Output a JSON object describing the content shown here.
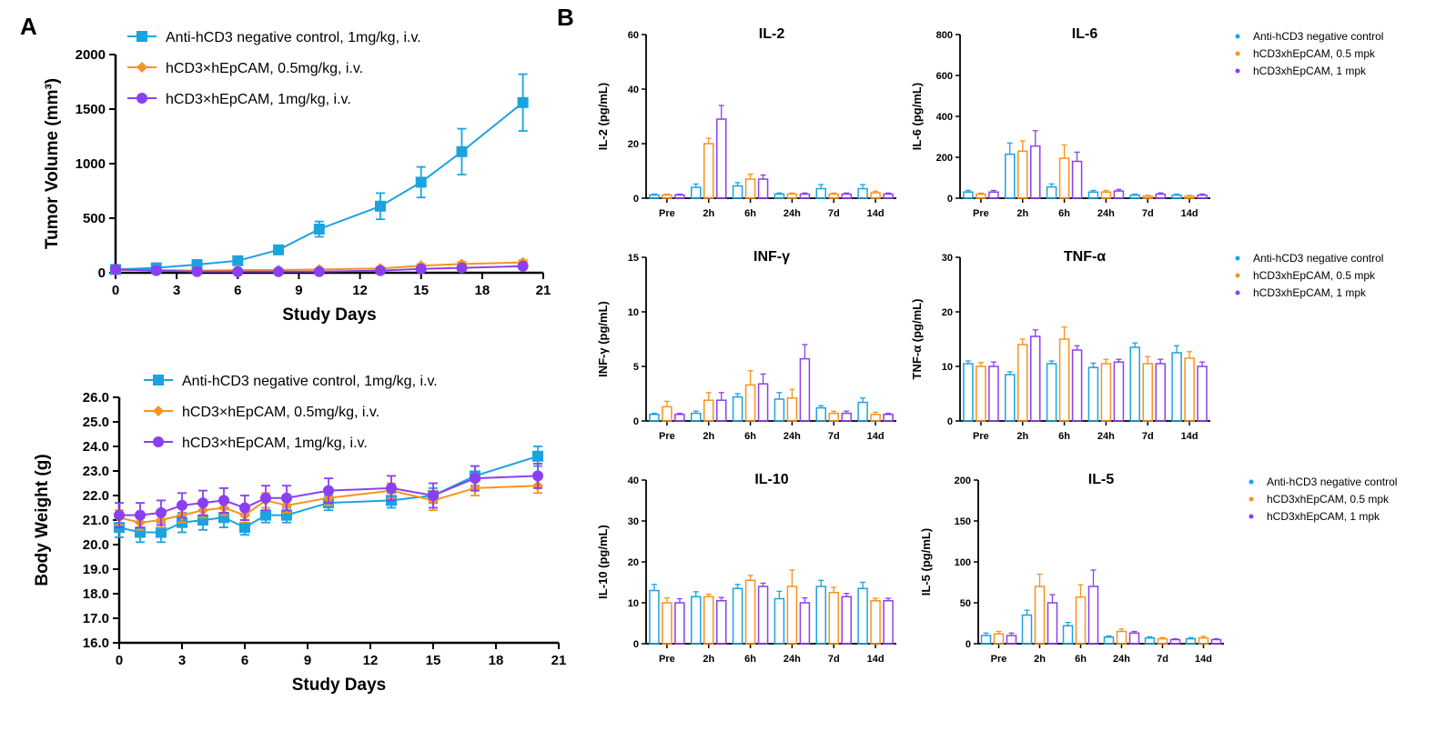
{
  "panels": {
    "A": "A",
    "B": "B"
  },
  "colors": {
    "control": "#1ba3e0",
    "half": "#f7931e",
    "one": "#8a3ff0"
  },
  "legend_A": [
    "Anti-hCD3 negative control, 1mg/kg, i.v.",
    "hCD3×hEpCAM, 0.5mg/kg, i.v.",
    "hCD3×hEpCAM, 1mg/kg, i.v."
  ],
  "legend_B": [
    "Anti-hCD3 negative control",
    "hCD3xhEpCAM, 0.5 mpk",
    "hCD3xhEpCAM, 1 mpk"
  ],
  "chart_data": [
    {
      "id": "tumor",
      "type": "line",
      "xlabel": "Study Days",
      "ylabel": "Tumor Volume (mm³)",
      "xlim": [
        0,
        21
      ],
      "ylim": [
        0,
        2000
      ],
      "xticks": [
        0,
        3,
        6,
        9,
        12,
        15,
        18,
        21
      ],
      "yticks": [
        0,
        500,
        1000,
        1500,
        2000
      ],
      "series": [
        {
          "name": "Anti-hCD3 negative control, 1mg/kg, i.v.",
          "marker": "square",
          "x": [
            0,
            2,
            4,
            6,
            8,
            10,
            13,
            15,
            17,
            20
          ],
          "y": [
            30,
            45,
            75,
            110,
            210,
            400,
            610,
            830,
            1110,
            1560
          ],
          "err": [
            10,
            15,
            20,
            25,
            35,
            70,
            120,
            140,
            210,
            260
          ]
        },
        {
          "name": "hCD3×hEpCAM, 0.5mg/kg, i.v.",
          "marker": "diamond",
          "x": [
            0,
            2,
            4,
            6,
            8,
            10,
            13,
            15,
            17,
            20
          ],
          "y": [
            25,
            25,
            20,
            25,
            25,
            30,
            40,
            65,
            80,
            95
          ],
          "err": [
            5,
            5,
            5,
            5,
            5,
            8,
            10,
            15,
            20,
            20
          ]
        },
        {
          "name": "hCD3×hEpCAM, 1mg/kg, i.v.",
          "marker": "circle",
          "x": [
            0,
            2,
            4,
            6,
            8,
            10,
            13,
            15,
            17,
            20
          ],
          "y": [
            30,
            20,
            10,
            10,
            10,
            10,
            20,
            35,
            45,
            60
          ],
          "err": [
            5,
            5,
            3,
            3,
            3,
            4,
            6,
            10,
            12,
            15
          ]
        }
      ]
    },
    {
      "id": "weight",
      "type": "line",
      "xlabel": "Study Days",
      "ylabel": "Body Weight (g)",
      "xlim": [
        0,
        21
      ],
      "ylim": [
        16,
        26
      ],
      "xticks": [
        0,
        3,
        6,
        9,
        12,
        15,
        18,
        21
      ],
      "yticks": [
        16.0,
        17.0,
        18.0,
        19.0,
        20.0,
        21.0,
        22.0,
        23.0,
        24.0,
        25.0,
        26.0
      ],
      "series": [
        {
          "name": "Anti-hCD3 negative control, 1mg/kg, i.v.",
          "marker": "square",
          "x": [
            0,
            1,
            2,
            3,
            4,
            5,
            6,
            7,
            8,
            10,
            13,
            15,
            17,
            20
          ],
          "y": [
            20.7,
            20.5,
            20.5,
            20.9,
            21.0,
            21.1,
            20.7,
            21.2,
            21.2,
            21.7,
            21.8,
            22.0,
            22.8,
            23.6
          ],
          "err": [
            0.4,
            0.4,
            0.4,
            0.4,
            0.4,
            0.4,
            0.3,
            0.3,
            0.3,
            0.3,
            0.3,
            0.3,
            0.4,
            0.4
          ]
        },
        {
          "name": "hCD3×hEpCAM, 0.5mg/kg, i.v.",
          "marker": "diamond",
          "x": [
            0,
            1,
            2,
            3,
            4,
            5,
            6,
            7,
            8,
            10,
            13,
            15,
            17,
            20
          ],
          "y": [
            21.1,
            20.9,
            21.0,
            21.2,
            21.4,
            21.5,
            21.2,
            21.8,
            21.6,
            21.9,
            22.2,
            21.8,
            22.3,
            22.4
          ],
          "err": [
            0.3,
            0.3,
            0.3,
            0.3,
            0.3,
            0.3,
            0.3,
            0.3,
            0.3,
            0.3,
            0.3,
            0.4,
            0.3,
            0.3
          ]
        },
        {
          "name": "hCD3×hEpCAM, 1mg/kg, i.v.",
          "marker": "circle",
          "x": [
            0,
            1,
            2,
            3,
            4,
            5,
            6,
            7,
            8,
            10,
            13,
            15,
            17,
            20
          ],
          "y": [
            21.2,
            21.2,
            21.3,
            21.6,
            21.7,
            21.8,
            21.5,
            21.9,
            21.9,
            22.2,
            22.3,
            22.0,
            22.7,
            22.8
          ],
          "err": [
            0.5,
            0.5,
            0.5,
            0.5,
            0.5,
            0.5,
            0.5,
            0.5,
            0.5,
            0.5,
            0.5,
            0.5,
            0.5,
            0.5
          ]
        }
      ]
    },
    {
      "id": "il2",
      "type": "bar",
      "title": "IL-2",
      "ylabel": "IL-2 (pg/mL)",
      "ylim": [
        0,
        60
      ],
      "yticks": [
        0,
        20,
        40,
        60
      ],
      "categories": [
        "Pre",
        "2h",
        "6h",
        "24h",
        "7d",
        "14d"
      ],
      "series": [
        {
          "name": "Anti-hCD3 negative control",
          "values": [
            1.2,
            4,
            4.5,
            1.5,
            3.5,
            3.5
          ],
          "err": [
            0.3,
            1.2,
            1.2,
            0.4,
            1.5,
            1.5
          ]
        },
        {
          "name": "hCD3xhEpCAM, 0.5 mpk",
          "values": [
            1.2,
            20,
            7,
            1.5,
            1.5,
            2
          ],
          "err": [
            0.3,
            2,
            1.8,
            0.4,
            0.4,
            0.6
          ]
        },
        {
          "name": "hCD3xhEpCAM, 1 mpk",
          "values": [
            1.2,
            29,
            7,
            1.5,
            1.5,
            1.5
          ],
          "err": [
            0.3,
            5,
            1.5,
            0.4,
            0.4,
            0.4
          ]
        }
      ]
    },
    {
      "id": "il6",
      "type": "bar",
      "title": "IL-6",
      "ylabel": "IL-6 (pg/mL)",
      "ylim": [
        0,
        800
      ],
      "yticks": [
        0,
        200,
        400,
        600,
        800
      ],
      "categories": [
        "Pre",
        "2h",
        "6h",
        "24h",
        "7d",
        "14d"
      ],
      "series": [
        {
          "name": "Anti-hCD3 negative control",
          "values": [
            30,
            215,
            55,
            30,
            15,
            15
          ],
          "err": [
            8,
            55,
            15,
            8,
            5,
            5
          ]
        },
        {
          "name": "hCD3xhEpCAM, 0.5 mpk",
          "values": [
            20,
            230,
            195,
            30,
            10,
            10
          ],
          "err": [
            5,
            50,
            65,
            8,
            4,
            4
          ]
        },
        {
          "name": "hCD3xhEpCAM, 1 mpk",
          "values": [
            30,
            255,
            180,
            35,
            20,
            15
          ],
          "err": [
            8,
            75,
            45,
            8,
            6,
            5
          ]
        }
      ]
    },
    {
      "id": "infg",
      "type": "bar",
      "title": "INF-γ",
      "ylabel": "INF-γ (pg/mL)",
      "ylim": [
        0,
        15
      ],
      "yticks": [
        0,
        5,
        10,
        15
      ],
      "categories": [
        "Pre",
        "2h",
        "6h",
        "24h",
        "7d",
        "14d"
      ],
      "series": [
        {
          "name": "Anti-hCD3 negative control",
          "values": [
            0.6,
            0.7,
            2.2,
            2.0,
            1.2,
            1.7
          ],
          "err": [
            0.1,
            0.2,
            0.3,
            0.6,
            0.2,
            0.4
          ]
        },
        {
          "name": "hCD3xhEpCAM, 0.5 mpk",
          "values": [
            1.3,
            1.9,
            3.3,
            2.1,
            0.7,
            0.6
          ],
          "err": [
            0.5,
            0.7,
            1.3,
            0.8,
            0.2,
            0.2
          ]
        },
        {
          "name": "hCD3xhEpCAM, 1 mpk",
          "values": [
            0.6,
            1.9,
            3.4,
            5.7,
            0.7,
            0.6
          ],
          "err": [
            0.1,
            0.7,
            0.9,
            1.3,
            0.2,
            0.1
          ]
        }
      ]
    },
    {
      "id": "tnfa",
      "type": "bar",
      "title": "TNF-α",
      "ylabel": "TNF-α (pg/mL)",
      "ylim": [
        0,
        30
      ],
      "yticks": [
        0,
        10,
        20,
        30
      ],
      "categories": [
        "Pre",
        "2h",
        "6h",
        "24h",
        "7d",
        "14d"
      ],
      "series": [
        {
          "name": "Anti-hCD3 negative control",
          "values": [
            10.5,
            8.5,
            10.5,
            9.8,
            13.5,
            12.5
          ],
          "err": [
            0.5,
            0.5,
            0.5,
            0.8,
            0.8,
            1.3
          ]
        },
        {
          "name": "hCD3xhEpCAM, 0.5 mpk",
          "values": [
            10.0,
            14.0,
            15.0,
            10.5,
            10.5,
            11.5
          ],
          "err": [
            0.7,
            1.0,
            2.2,
            0.8,
            1.3,
            1.2
          ]
        },
        {
          "name": "hCD3xhEpCAM, 1 mpk",
          "values": [
            10.0,
            15.5,
            13.0,
            10.8,
            10.5,
            10.0
          ],
          "err": [
            0.8,
            1.2,
            0.8,
            0.5,
            0.8,
            0.8
          ]
        }
      ]
    },
    {
      "id": "il10",
      "type": "bar",
      "title": "IL-10",
      "ylabel": "IL-10 (pg/mL)",
      "ylim": [
        0,
        40
      ],
      "yticks": [
        0,
        10,
        20,
        30,
        40
      ],
      "categories": [
        "Pre",
        "2h",
        "6h",
        "24h",
        "7d",
        "14d"
      ],
      "series": [
        {
          "name": "Anti-hCD3 negative control",
          "values": [
            13,
            11.5,
            13.5,
            11,
            14,
            13.5
          ],
          "err": [
            1.5,
            1.2,
            1.0,
            1.8,
            1.5,
            1.5
          ]
        },
        {
          "name": "hCD3xhEpCAM, 0.5 mpk",
          "values": [
            10,
            11.5,
            15.5,
            14,
            12.5,
            10.5
          ],
          "err": [
            1.2,
            0.6,
            1.2,
            4.0,
            1.3,
            0.6
          ]
        },
        {
          "name": "hCD3xhEpCAM, 1 mpk",
          "values": [
            10,
            10.5,
            14,
            10,
            11.5,
            10.5
          ],
          "err": [
            1.0,
            0.8,
            0.8,
            1.2,
            0.8,
            0.6
          ]
        }
      ]
    },
    {
      "id": "il5",
      "type": "bar",
      "title": "IL-5",
      "ylabel": "IL-5 (pg/mL)",
      "ylim": [
        0,
        200
      ],
      "yticks": [
        0,
        50,
        100,
        150,
        200
      ],
      "categories": [
        "Pre",
        "2h",
        "6h",
        "24h",
        "7d",
        "14d"
      ],
      "series": [
        {
          "name": "Anti-hCD3 negative control",
          "values": [
            10,
            35,
            22,
            8,
            7,
            6
          ],
          "err": [
            3,
            6,
            4,
            1.5,
            1.5,
            1.5
          ]
        },
        {
          "name": "hCD3xhEpCAM, 0.5 mpk",
          "values": [
            12,
            70,
            57,
            15,
            6,
            7
          ],
          "err": [
            3,
            15,
            15,
            3,
            1.5,
            2
          ]
        },
        {
          "name": "hCD3xhEpCAM, 1 mpk",
          "values": [
            10,
            50,
            70,
            13,
            5,
            5
          ],
          "err": [
            3,
            10,
            20,
            2,
            1,
            1
          ]
        }
      ]
    }
  ]
}
